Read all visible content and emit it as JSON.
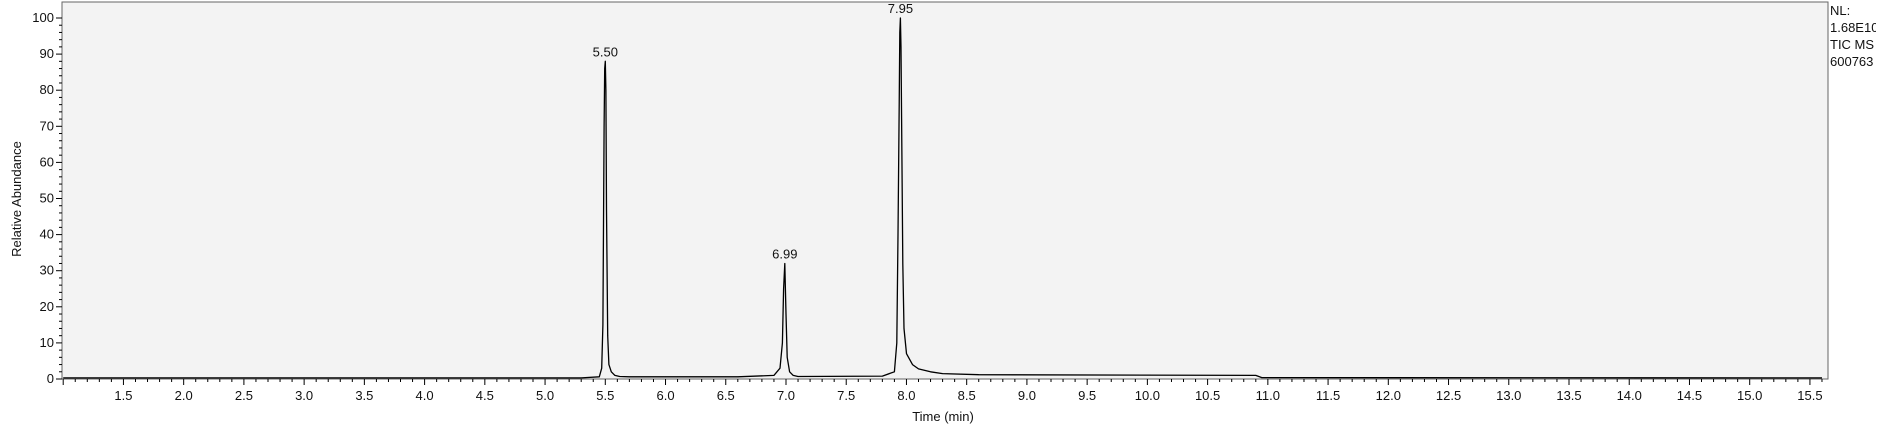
{
  "chart_data": {
    "type": "line",
    "xlabel": "Time (min)",
    "ylabel": "Relative Abundance",
    "xlim": [
      0.99,
      15.65
    ],
    "ylim": [
      0,
      100
    ],
    "x_ticks": [
      "1.5",
      "2.0",
      "2.5",
      "3.0",
      "3.5",
      "4.0",
      "4.5",
      "5.0",
      "5.5",
      "6.0",
      "6.5",
      "7.0",
      "7.5",
      "8.0",
      "8.5",
      "9.0",
      "9.5",
      "10.0",
      "10.5",
      "11.0",
      "11.5",
      "12.0",
      "12.5",
      "13.0",
      "13.5",
      "14.0",
      "14.5",
      "15.0",
      "15.5"
    ],
    "y_ticks": [
      "0",
      "10",
      "20",
      "30",
      "40",
      "50",
      "60",
      "70",
      "80",
      "90",
      "100"
    ],
    "peak_labels": [
      {
        "x": 5.5,
        "y": 88,
        "label": "5.50"
      },
      {
        "x": 6.99,
        "y": 32,
        "label": "6.99"
      },
      {
        "x": 7.95,
        "y": 100,
        "label": "7.95"
      }
    ],
    "series": [
      {
        "x": [
          1.0,
          5.3,
          5.45,
          5.47,
          5.48,
          5.49,
          5.495,
          5.5,
          5.505,
          5.51,
          5.52,
          5.53,
          5.55,
          5.58,
          5.62,
          5.7,
          6.6,
          6.9,
          6.95,
          6.97,
          6.98,
          6.99,
          7.0,
          7.01,
          7.03,
          7.06,
          7.1,
          7.8,
          7.9,
          7.92,
          7.93,
          7.94,
          7.945,
          7.95,
          7.955,
          7.96,
          7.97,
          7.98,
          8.0,
          8.05,
          8.1,
          8.2,
          8.3,
          8.6,
          10.9,
          10.95,
          15.6
        ],
        "y": [
          0.3,
          0.3,
          0.6,
          3,
          15,
          70,
          86,
          88,
          80,
          47,
          12,
          4,
          2,
          1,
          0.7,
          0.6,
          0.6,
          1,
          3,
          10,
          25,
          32,
          18,
          6,
          2,
          1,
          0.7,
          0.8,
          2,
          10,
          40,
          76,
          96,
          100,
          92,
          72,
          32,
          14,
          7,
          4,
          2.8,
          2,
          1.5,
          1.2,
          1,
          0.4,
          0.3
        ]
      }
    ]
  },
  "normalization": {
    "lines": [
      "NL:",
      "1.68E10",
      "TIC  MS",
      "600763"
    ]
  }
}
